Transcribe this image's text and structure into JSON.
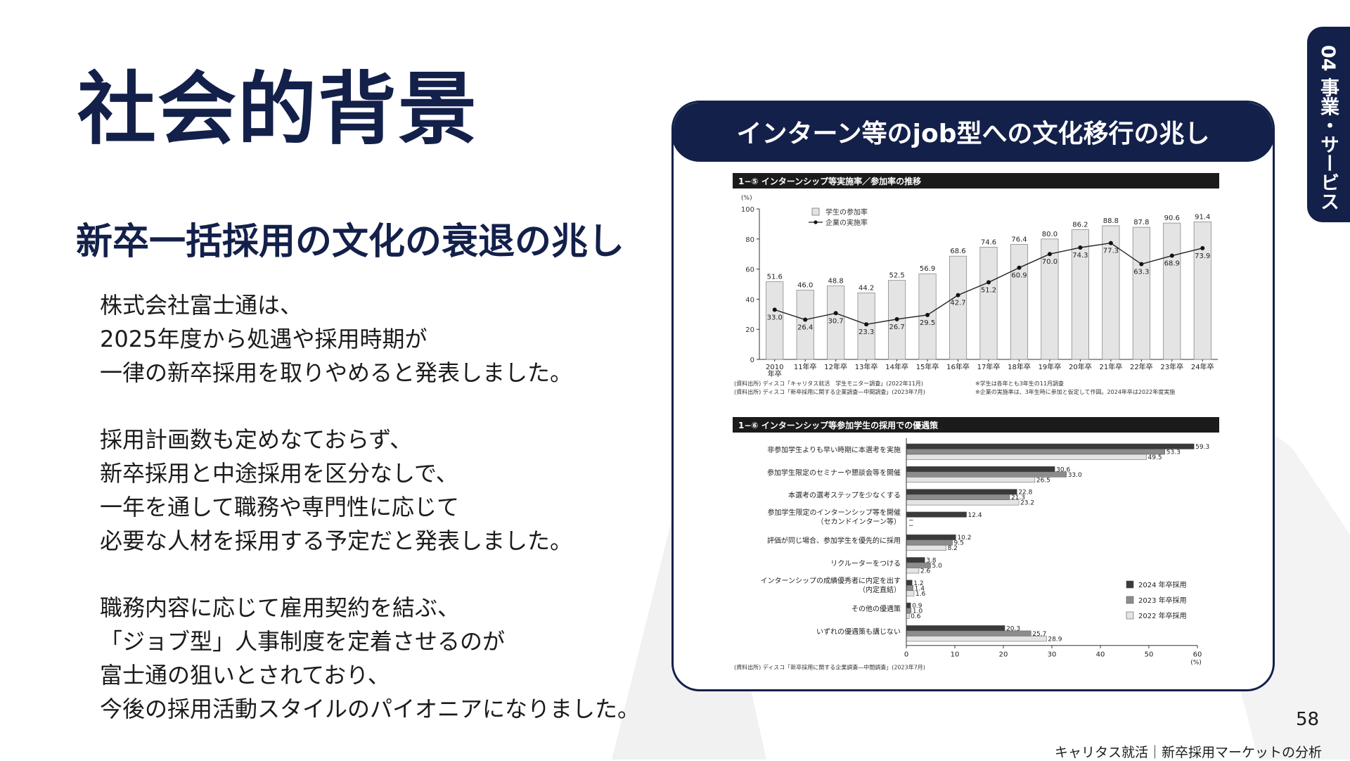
{
  "slide": {
    "title": "社会的背景",
    "subtitle": "新卒一括採用の文化の衰退の兆し",
    "paragraphs": [
      [
        "株式会社富士通は、",
        "2025年度から処遇や採用時期が",
        "一律の新卒採用を取りやめると発表しました。"
      ],
      [
        "採用計画数も定めなておらず、",
        "新卒採用と中途採用を区分なしで、",
        "一年を通して職務や専門性に応じて",
        "必要な人材を採用する予定だと発表しました。"
      ],
      [
        "職務内容に応じて雇用契約を結ぶ、",
        "「ジョブ型」人事制度を定着させるのが",
        "富士通の狙いとされており、",
        "今後の採用活動スタイルのパイオニアになりました。"
      ]
    ],
    "side_tab": "04 事業・サービス",
    "page_number": "58",
    "footer": "キャリタス就活｜新卒採用マーケットの分析",
    "colors": {
      "navy": "#13204a",
      "bar_light": "#e4e4e4",
      "bar_dark": "#3a3a3a",
      "bar_mid": "#8c8c8c"
    }
  },
  "panel": {
    "title": "インターン等のjob型への文化移行の兆し"
  },
  "chart_data": [
    {
      "type": "bar",
      "title": "1−⑤ インターンシップ等実施率／参加率の推移",
      "ylabel": "(%)",
      "ylim": [
        0,
        100
      ],
      "yticks": [
        "0",
        "20",
        "40",
        "60",
        "80",
        "100"
      ],
      "categories": [
        "2010年卒",
        "11年卒",
        "12年卒",
        "13年卒",
        "14年卒",
        "15年卒",
        "16年卒",
        "17年卒",
        "18年卒",
        "19年卒",
        "20年卒",
        "21年卒",
        "22年卒",
        "23年卒",
        "24年卒"
      ],
      "category_lines": [
        [
          "2010",
          "年卒"
        ],
        [
          "11年卒"
        ],
        [
          "12年卒"
        ],
        [
          "13年卒"
        ],
        [
          "14年卒"
        ],
        [
          "15年卒"
        ],
        [
          "16年卒"
        ],
        [
          "17年卒"
        ],
        [
          "18年卒"
        ],
        [
          "19年卒"
        ],
        [
          "20年卒"
        ],
        [
          "21年卒"
        ],
        [
          "22年卒"
        ],
        [
          "23年卒"
        ],
        [
          "24年卒"
        ]
      ],
      "series": [
        {
          "name": "学生の参加率",
          "kind": "bar",
          "values": [
            51.6,
            46.0,
            48.8,
            44.2,
            52.5,
            56.9,
            68.6,
            74.6,
            76.4,
            80.0,
            86.2,
            88.8,
            87.8,
            90.6,
            91.4
          ],
          "labels": [
            "51.6",
            "46.0",
            "48.8",
            "44.2",
            "52.5",
            "56.9",
            "68.6",
            "74.6",
            "76.4",
            "80.0",
            "86.2",
            "88.8",
            "87.8",
            "90.6",
            "91.4"
          ]
        },
        {
          "name": "企業の実施率",
          "kind": "line",
          "values": [
            33.0,
            26.4,
            30.7,
            23.3,
            26.7,
            29.5,
            42.7,
            51.2,
            60.9,
            70.0,
            74.3,
            77.3,
            63.3,
            68.9,
            73.9
          ],
          "labels": [
            "33.0",
            "26.4",
            "30.7",
            "23.3",
            "26.7",
            "29.5",
            "42.7",
            "51.2",
            "60.9",
            "70.0",
            "74.3",
            "77.3",
            "63.3",
            "68.9",
            "73.9"
          ]
        }
      ],
      "notes": [
        "(資料出所) ディスコ「キャリタス就活　学生モニター調査」(2022年11月)",
        "(資料出所) ディスコ「新卒採用に関する企業調査―中間調査」(2023年7月)",
        "※学生は各年とも3年生の11月調査",
        "※企業の実施率は、3年生時に参加と仮定して作図。2024年卒は2022年度実施"
      ],
      "grid": false,
      "legend": "top-left"
    },
    {
      "type": "bar",
      "orientation": "horizontal",
      "title": "1−⑥ インターンシップ等参加学生の採用での優遇策",
      "xlabel": "(%)",
      "xlim": [
        0,
        60
      ],
      "xticks": [
        "0",
        "10",
        "20",
        "30",
        "40",
        "50",
        "60"
      ],
      "categories": [
        "非参加学生よりも早い時期に本選考を実施",
        "参加学生限定のセミナーや懇談会等を開催",
        "本選考の選考ステップを少なくする",
        "参加学生限定のインターンシップ等を開催（セカンドインターン等）",
        "評価が同じ場合、参加学生を優先的に採用",
        "リクルーターをつける",
        "インターンシップの成績優秀者に内定を出す（内定直結）",
        "その他の優遇策",
        "いずれの優遇策も講じない"
      ],
      "category_lines": [
        [
          "非参加学生よりも早い時期に本選考を実施"
        ],
        [
          "参加学生限定のセミナーや懇談会等を開催"
        ],
        [
          "本選考の選考ステップを少なくする"
        ],
        [
          "参加学生限定のインターンシップ等を開催",
          "（セカンドインターン等）"
        ],
        [
          "評価が同じ場合、参加学生を優先的に採用"
        ],
        [
          "リクルーターをつける"
        ],
        [
          "インターンシップの成績優秀者に内定を出す",
          "（内定直結）"
        ],
        [
          "その他の優遇策"
        ],
        [
          "いずれの優遇策も講じない"
        ]
      ],
      "series": [
        {
          "name": "2024 年卒採用",
          "values": [
            59.3,
            30.6,
            22.8,
            12.4,
            10.2,
            3.8,
            1.2,
            0.9,
            20.3
          ],
          "labels": [
            "59.3",
            "30.6",
            "22.8",
            "12.4",
            "10.2",
            "3.8",
            "1.2",
            "0.9",
            "20.3"
          ]
        },
        {
          "name": "2023 年卒採用",
          "values": [
            53.3,
            33.0,
            21.3,
            null,
            9.5,
            5.0,
            1.4,
            1.0,
            25.7
          ],
          "labels": [
            "53.3",
            "33.0",
            "21.3",
            "−",
            "9.5",
            "5.0",
            "1.4",
            "1.0",
            "25.7"
          ]
        },
        {
          "name": "2022 年卒採用",
          "values": [
            49.5,
            26.5,
            23.2,
            null,
            8.2,
            2.6,
            1.6,
            0.6,
            28.9
          ],
          "labels": [
            "49.5",
            "26.5",
            "23.2",
            "−",
            "8.2",
            "2.6",
            "1.6",
            "0.6",
            "28.9"
          ]
        }
      ],
      "notes": [
        "(資料出所) ディスコ「新卒採用に関する企業調査―中間調査」(2023年7月)"
      ],
      "legend": "bottom-right"
    }
  ]
}
